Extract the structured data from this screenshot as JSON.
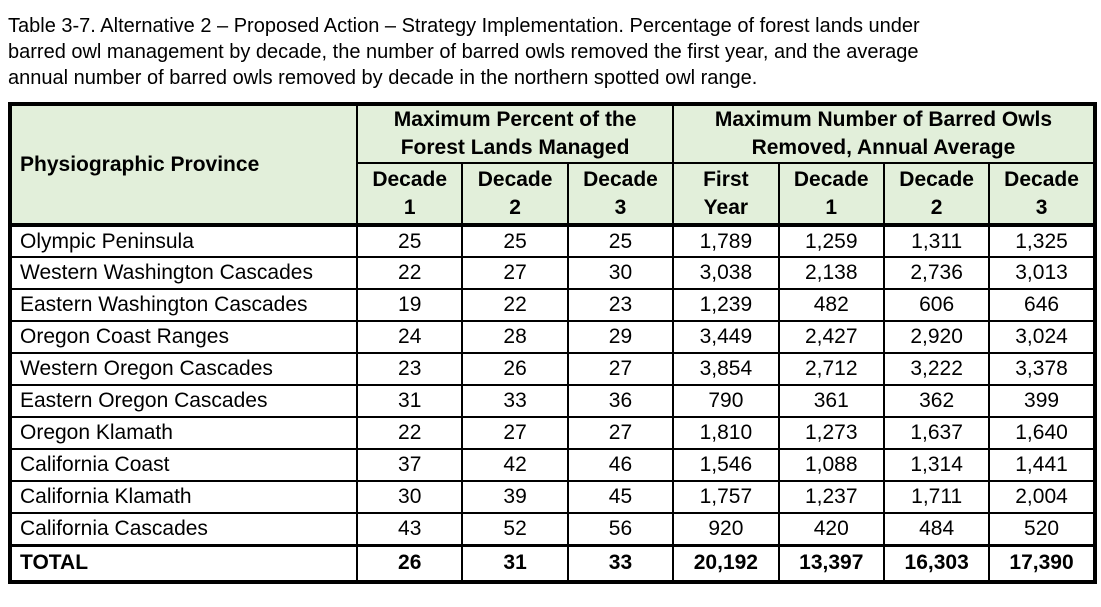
{
  "caption": {
    "lines": [
      "Table 3-7. Alternative 2 – Proposed Action – Strategy Implementation. Percentage of forest lands under",
      "barred owl management by decade, the number of barred owls removed the first year, and the average",
      "annual number of barred owls removed by decade in the northern spotted owl range."
    ]
  },
  "table": {
    "colors": {
      "header_bg": "#e2efda",
      "border": "#000000",
      "body_bg": "#ffffff"
    },
    "header": {
      "province": "Physiographic Province",
      "group_percent": {
        "line1": "Maximum Percent of the",
        "line2": "Forest Lands Managed"
      },
      "group_removed": {
        "line1": "Maximum Number of Barred Owls",
        "line2": "Removed, Annual Average"
      },
      "sub": [
        {
          "line1": "Decade",
          "line2": "1"
        },
        {
          "line1": "Decade",
          "line2": "2"
        },
        {
          "line1": "Decade",
          "line2": "3"
        },
        {
          "line1": "First",
          "line2": "Year"
        },
        {
          "line1": "Decade",
          "line2": "1"
        },
        {
          "line1": "Decade",
          "line2": "2"
        },
        {
          "line1": "Decade",
          "line2": "3"
        }
      ]
    },
    "rows": [
      {
        "province": "Olympic Peninsula",
        "values": [
          "25",
          "25",
          "25",
          "1,789",
          "1,259",
          "1,311",
          "1,325"
        ],
        "is_total": false
      },
      {
        "province": "Western Washington Cascades",
        "values": [
          "22",
          "27",
          "30",
          "3,038",
          "2,138",
          "2,736",
          "3,013"
        ],
        "is_total": false
      },
      {
        "province": "Eastern Washington Cascades",
        "values": [
          "19",
          "22",
          "23",
          "1,239",
          "482",
          "606",
          "646"
        ],
        "is_total": false
      },
      {
        "province": "Oregon Coast Ranges",
        "values": [
          "24",
          "28",
          "29",
          "3,449",
          "2,427",
          "2,920",
          "3,024"
        ],
        "is_total": false
      },
      {
        "province": "Western Oregon Cascades",
        "values": [
          "23",
          "26",
          "27",
          "3,854",
          "2,712",
          "3,222",
          "3,378"
        ],
        "is_total": false
      },
      {
        "province": "Eastern Oregon Cascades",
        "values": [
          "31",
          "33",
          "36",
          "790",
          "361",
          "362",
          "399"
        ],
        "is_total": false
      },
      {
        "province": "Oregon Klamath",
        "values": [
          "22",
          "27",
          "27",
          "1,810",
          "1,273",
          "1,637",
          "1,640"
        ],
        "is_total": false
      },
      {
        "province": "California Coast",
        "values": [
          "37",
          "42",
          "46",
          "1,546",
          "1,088",
          "1,314",
          "1,441"
        ],
        "is_total": false
      },
      {
        "province": "California Klamath",
        "values": [
          "30",
          "39",
          "45",
          "1,757",
          "1,237",
          "1,711",
          "2,004"
        ],
        "is_total": false
      },
      {
        "province": "California Cascades",
        "values": [
          "43",
          "52",
          "56",
          "920",
          "420",
          "484",
          "520"
        ],
        "is_total": false
      },
      {
        "province": "TOTAL",
        "values": [
          "26",
          "31",
          "33",
          "20,192",
          "13,397",
          "16,303",
          "17,390"
        ],
        "is_total": true
      }
    ]
  }
}
